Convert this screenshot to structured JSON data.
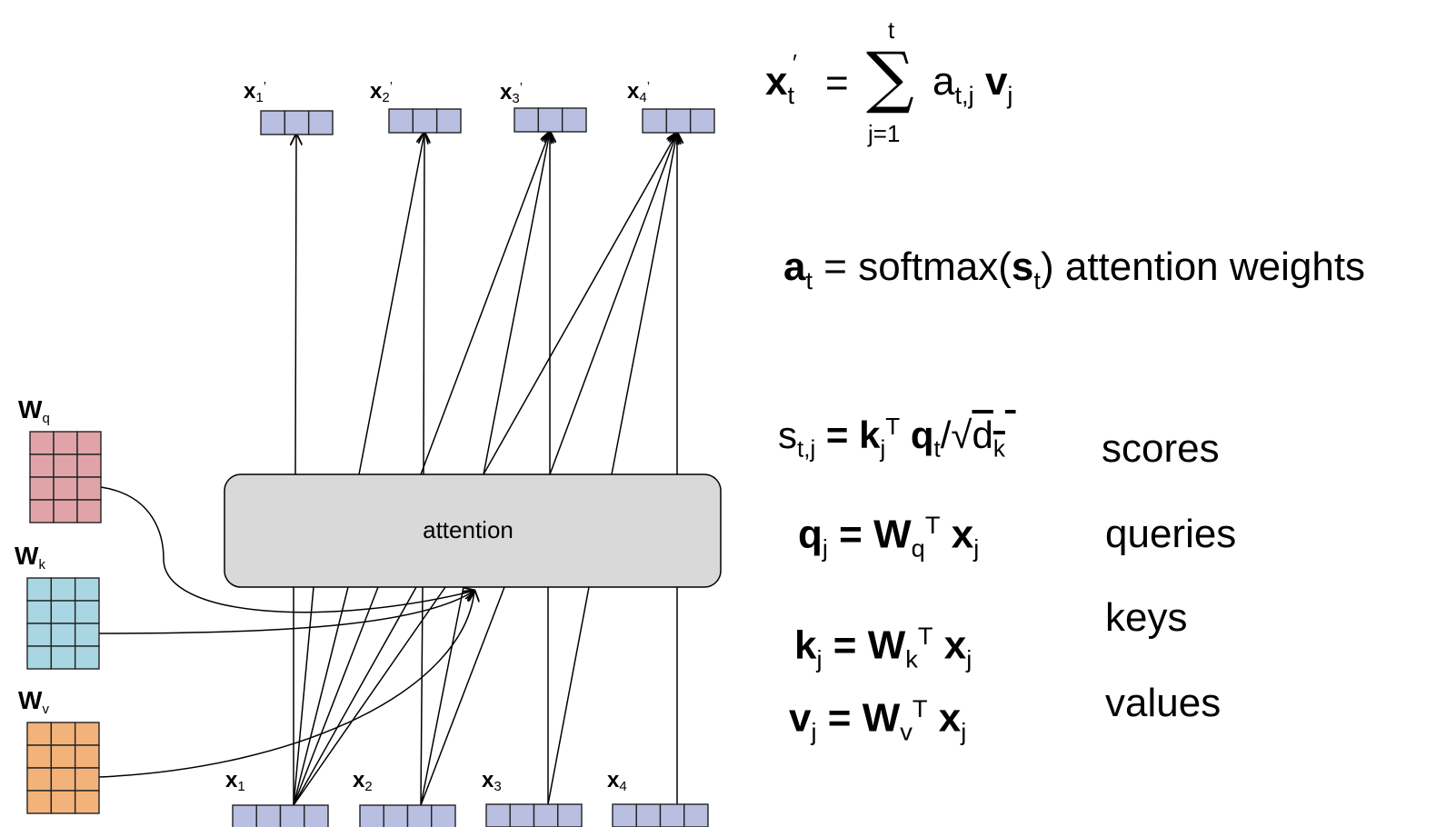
{
  "attention_box": {
    "label": "attention"
  },
  "inputs": [
    {
      "base": "x",
      "sub": "1"
    },
    {
      "base": "x",
      "sub": "2"
    },
    {
      "base": "x",
      "sub": "3"
    },
    {
      "base": "x",
      "sub": "4"
    }
  ],
  "outputs": [
    {
      "base": "x",
      "sub": "1",
      "prime": "’"
    },
    {
      "base": "x",
      "sub": "2",
      "prime": "’"
    },
    {
      "base": "x",
      "sub": "3",
      "prime": "’"
    },
    {
      "base": "x",
      "sub": "4",
      "prime": "’"
    }
  ],
  "weights": [
    {
      "base": "W",
      "sub": "q",
      "color": "#e0a4a8"
    },
    {
      "base": "W",
      "sub": "k",
      "color": "#a9d6e3"
    },
    {
      "base": "W",
      "sub": "v",
      "color": "#f2b27a"
    }
  ],
  "colors": {
    "vector_fill": "#b8bfe0",
    "attention_fill": "#d9d9d9"
  },
  "equations": {
    "output": {
      "lhs_base": "x",
      "lhs_sub": "t",
      "lhs_prime": "′",
      "equals": "=",
      "sum_symbol": "∑",
      "sum_upper": "t",
      "sum_lower": "j=1",
      "a_base": "a",
      "a_sub": "t,j",
      "v_base": "v",
      "v_sub": "j"
    },
    "softmax": {
      "a_base": "a",
      "a_sub": "t",
      "rest_pre": " = softmax(",
      "s_base": "s",
      "s_sub": "t",
      "rest_post": ") attention weights"
    },
    "scores": {
      "s_base": "s",
      "s_sub": "t,j",
      "equals": " = ",
      "k_base": "k",
      "k_sub": "j",
      "k_sup": "T",
      "q_base": "q",
      "q_sub": "t",
      "slash": "/",
      "sqrt": "√",
      "d_base": "d",
      "d_sub": "k",
      "label": "scores"
    },
    "queries": {
      "lhs_base": "q",
      "lhs_sub": "j",
      "equals": " =  ",
      "w_base": "W",
      "w_sub": "q",
      "w_sup": "T",
      "x_base": "x",
      "x_sub": "j",
      "label": "queries"
    },
    "keys": {
      "lhs_base": "k",
      "lhs_sub": "j",
      "equals": " =  ",
      "w_base": "W",
      "w_sub": "k",
      "w_sup": "T",
      "x_base": "x",
      "x_sub": "j",
      "label": "keys"
    },
    "values": {
      "lhs_base": "v",
      "lhs_sub": "j",
      "equals": " =  ",
      "w_base": "W",
      "w_sub": "v",
      "w_sup": "T",
      "x_base": "x",
      "x_sub": "j",
      "label": "values"
    }
  }
}
